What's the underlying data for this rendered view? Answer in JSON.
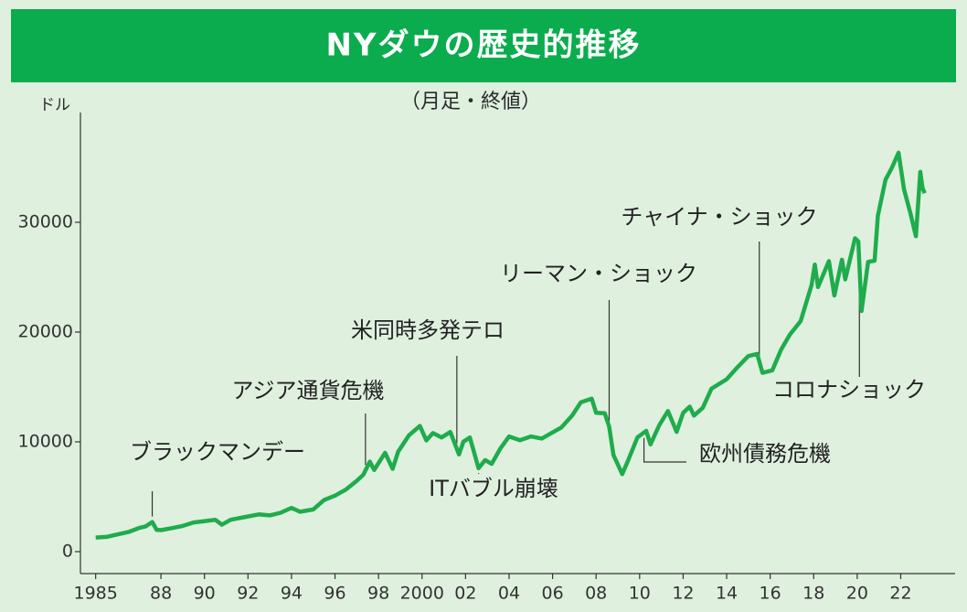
{
  "chart_data": {
    "type": "line",
    "title": "NYダウの歴史的推移",
    "subtitle": "（月足・終値）",
    "y_unit": "ドル",
    "color": "#1fac4c",
    "xlim": [
      1984.3,
      2024.5
    ],
    "ylim": [
      -2000,
      40000
    ],
    "yticks": [
      0,
      10000,
      20000,
      30000
    ],
    "xticks": [
      {
        "value": 1985,
        "label": "1985"
      },
      {
        "value": 1988,
        "label": "88"
      },
      {
        "value": 1990,
        "label": "90"
      },
      {
        "value": 1992,
        "label": "92"
      },
      {
        "value": 1994,
        "label": "94"
      },
      {
        "value": 1996,
        "label": "96"
      },
      {
        "value": 1998,
        "label": "98"
      },
      2000,
      {
        "value": 2002,
        "label": "02"
      },
      {
        "value": 2004,
        "label": "04"
      },
      {
        "value": 2006,
        "label": "06"
      },
      {
        "value": 2008,
        "label": "08"
      },
      {
        "value": 2010,
        "label": "10"
      },
      {
        "value": 2012,
        "label": "12"
      },
      {
        "value": 2014,
        "label": "14"
      },
      {
        "value": 2016,
        "label": "16"
      },
      {
        "value": 2018,
        "label": "18"
      },
      {
        "value": 2020,
        "label": "20"
      },
      {
        "value": 2022,
        "label": "22"
      }
    ],
    "x": [
      1985.0,
      1985.5,
      1986.0,
      1986.5,
      1987.0,
      1987.3,
      1987.6,
      1987.8,
      1988.0,
      1988.5,
      1989.0,
      1989.5,
      1989.9,
      1990.5,
      1990.8,
      1991.2,
      1991.9,
      1992.5,
      1993.0,
      1993.5,
      1994.0,
      1994.4,
      1995.0,
      1995.5,
      1996.0,
      1996.5,
      1997.0,
      1997.3,
      1997.6,
      1997.8,
      1998.3,
      1998.65,
      1998.9,
      1999.4,
      1999.9,
      2000.2,
      2000.5,
      2000.9,
      2001.3,
      2001.7,
      2001.9,
      2002.2,
      2002.6,
      2002.9,
      2003.2,
      2003.6,
      2004.0,
      2004.5,
      2005.0,
      2005.5,
      2006.0,
      2006.4,
      2006.9,
      2007.3,
      2007.8,
      2008.0,
      2008.4,
      2008.6,
      2008.8,
      2009.2,
      2009.5,
      2009.9,
      2010.3,
      2010.5,
      2010.9,
      2011.3,
      2011.7,
      2012.0,
      2012.3,
      2012.5,
      2012.9,
      2013.3,
      2014.0,
      2014.5,
      2015.0,
      2015.4,
      2015.65,
      2016.1,
      2016.5,
      2016.9,
      2017.4,
      2017.9,
      2018.05,
      2018.2,
      2018.7,
      2018.95,
      2019.3,
      2019.45,
      2019.9,
      2020.05,
      2020.2,
      2020.5,
      2020.8,
      2020.95,
      2021.3,
      2021.6,
      2021.9,
      2022.15,
      2022.45,
      2022.7,
      2022.9,
      2023.0,
      2023.1
    ],
    "values": [
      1280,
      1340,
      1570,
      1780,
      2160,
      2300,
      2700,
      1990,
      1960,
      2140,
      2340,
      2660,
      2750,
      2900,
      2450,
      2900,
      3170,
      3390,
      3300,
      3540,
      3980,
      3630,
      3840,
      4700,
      5100,
      5650,
      6450,
      7000,
      8200,
      7440,
      9000,
      7540,
      9100,
      10600,
      11450,
      10130,
      10800,
      10400,
      10900,
      8850,
      10020,
      10400,
      7590,
      8340,
      7990,
      9400,
      10490,
      10140,
      10490,
      10300,
      10860,
      11300,
      12400,
      13600,
      13930,
      12650,
      12600,
      11380,
      8800,
      7060,
      8450,
      10400,
      11000,
      9770,
      11500,
      12810,
      10910,
      12630,
      13210,
      12390,
      13100,
      14840,
      15700,
      16800,
      17820,
      18010,
      16280,
      16520,
      18400,
      19760,
      21000,
      24270,
      26150,
      24100,
      26460,
      23330,
      26590,
      24800,
      28540,
      28250,
      21920,
      26400,
      26500,
      30600,
      33870,
      35000,
      36340,
      33000,
      30780,
      28730,
      34590,
      33150,
      32650
    ],
    "annotations": [
      {
        "label": "ブラックマンデー",
        "x": 1987.6
      },
      {
        "label": "アジア通貨危機",
        "x": 1997.4
      },
      {
        "label": "米同時多発テロ",
        "x": 2001.6
      },
      {
        "label": "ITバブル崩壊",
        "x": 2002.6
      },
      {
        "label": "リーマン・ショック",
        "x": 2008.6
      },
      {
        "label": "欧州債務危機",
        "x": 2010.2
      },
      {
        "label": "チャイナ・ショック",
        "x": 2015.5
      },
      {
        "label": "コロナショック",
        "x": 2020.1
      }
    ]
  }
}
